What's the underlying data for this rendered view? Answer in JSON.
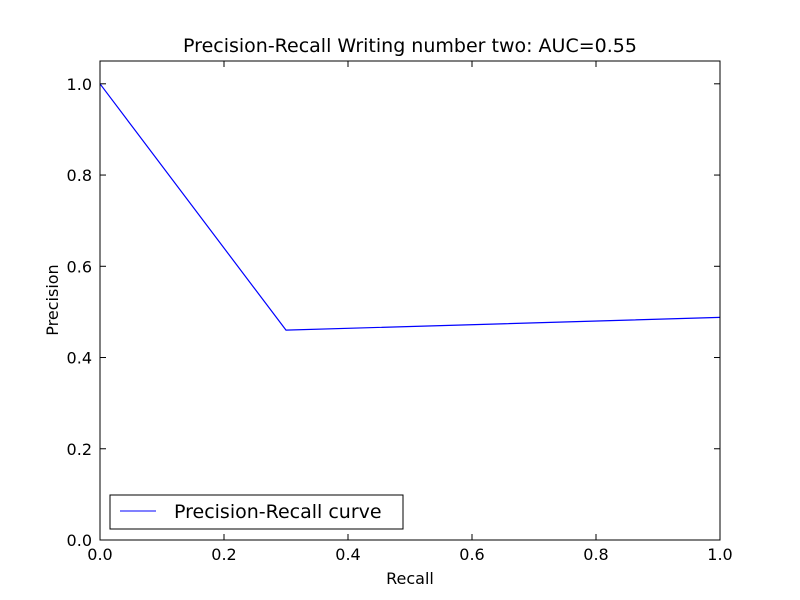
{
  "chart_data": {
    "type": "line",
    "title": "Precision-Recall Writing number two: AUC=0.55",
    "xlabel": "Recall",
    "ylabel": "Precision",
    "xlim": [
      0.0,
      1.0
    ],
    "ylim": [
      0.0,
      1.05
    ],
    "xticks": [
      0.0,
      0.2,
      0.4,
      0.6,
      0.8,
      1.0
    ],
    "xtick_labels": [
      "0.0",
      "0.2",
      "0.4",
      "0.6",
      "0.8",
      "1.0"
    ],
    "yticks": [
      0.0,
      0.2,
      0.4,
      0.6,
      0.8,
      1.0
    ],
    "ytick_labels": [
      "0.0",
      "0.2",
      "0.4",
      "0.6",
      "0.8",
      "1.0"
    ],
    "grid": false,
    "legend_position": "lower-left",
    "series": [
      {
        "name": "Precision-Recall curve",
        "color": "#0000ff",
        "x": [
          0.0,
          0.3,
          1.0
        ],
        "y": [
          1.0,
          0.46,
          0.488
        ]
      }
    ]
  }
}
